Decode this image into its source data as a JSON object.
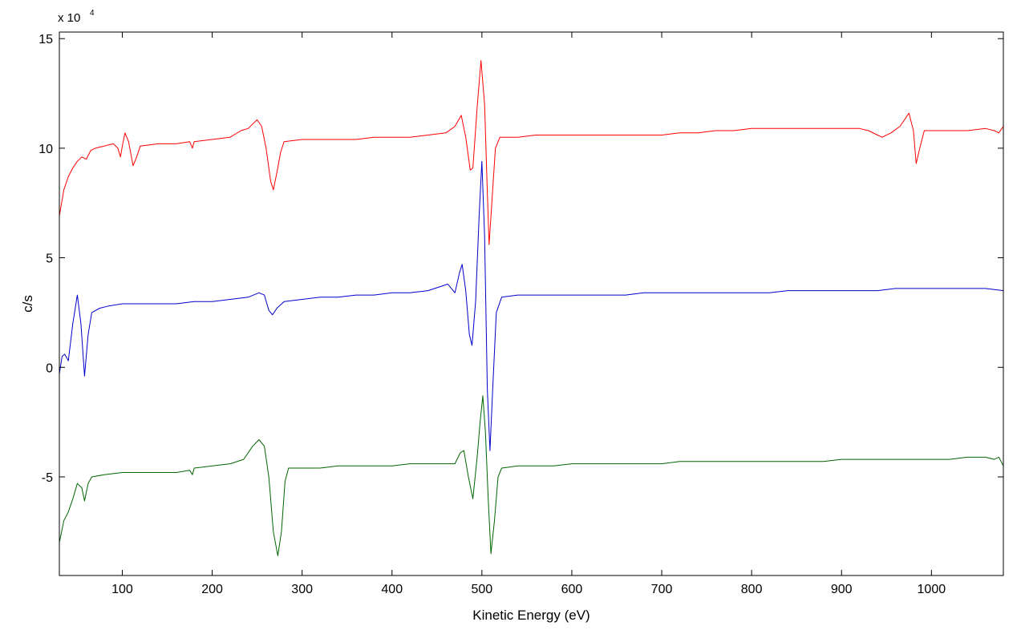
{
  "chart_data": {
    "type": "line",
    "title": "",
    "xlabel": "Kinetic Energy (eV)",
    "ylabel": "c/s",
    "y_multiplier": {
      "base": "x 10",
      "exponent": "4"
    },
    "xlim": [
      30,
      1080
    ],
    "ylim": [
      -9.5,
      15.3
    ],
    "xticks": [
      100,
      200,
      300,
      400,
      500,
      600,
      700,
      800,
      900,
      1000
    ],
    "yticks": [
      -5,
      0,
      5,
      10,
      15
    ],
    "grid": false,
    "legend": "none",
    "series": [
      {
        "color": "#ff0000",
        "points": [
          [
            30,
            6.9
          ],
          [
            35,
            8.1
          ],
          [
            40,
            8.7
          ],
          [
            45,
            9.1
          ],
          [
            50,
            9.4
          ],
          [
            55,
            9.6
          ],
          [
            60,
            9.5
          ],
          [
            65,
            9.9
          ],
          [
            70,
            10.0
          ],
          [
            80,
            10.1
          ],
          [
            90,
            10.2
          ],
          [
            95,
            10.0
          ],
          [
            98,
            9.6
          ],
          [
            100,
            10.1
          ],
          [
            103,
            10.7
          ],
          [
            107,
            10.3
          ],
          [
            112,
            9.2
          ],
          [
            116,
            9.6
          ],
          [
            120,
            10.1
          ],
          [
            140,
            10.2
          ],
          [
            160,
            10.2
          ],
          [
            175,
            10.3
          ],
          [
            178,
            10.0
          ],
          [
            180,
            10.3
          ],
          [
            200,
            10.4
          ],
          [
            220,
            10.5
          ],
          [
            232,
            10.8
          ],
          [
            240,
            10.9
          ],
          [
            250,
            11.3
          ],
          [
            255,
            11.0
          ],
          [
            260,
            10.0
          ],
          [
            265,
            8.5
          ],
          [
            268,
            8.1
          ],
          [
            272,
            8.9
          ],
          [
            276,
            9.8
          ],
          [
            280,
            10.3
          ],
          [
            300,
            10.4
          ],
          [
            320,
            10.4
          ],
          [
            340,
            10.4
          ],
          [
            360,
            10.4
          ],
          [
            380,
            10.5
          ],
          [
            400,
            10.5
          ],
          [
            420,
            10.5
          ],
          [
            440,
            10.6
          ],
          [
            460,
            10.7
          ],
          [
            470,
            11.0
          ],
          [
            477,
            11.5
          ],
          [
            482,
            10.5
          ],
          [
            487,
            9.0
          ],
          [
            490,
            9.1
          ],
          [
            495,
            12.0
          ],
          [
            499,
            14.0
          ],
          [
            503,
            12.0
          ],
          [
            506,
            8.0
          ],
          [
            508,
            5.6
          ],
          [
            511,
            7.5
          ],
          [
            515,
            10.0
          ],
          [
            520,
            10.5
          ],
          [
            540,
            10.5
          ],
          [
            560,
            10.6
          ],
          [
            580,
            10.6
          ],
          [
            600,
            10.6
          ],
          [
            620,
            10.6
          ],
          [
            640,
            10.6
          ],
          [
            660,
            10.6
          ],
          [
            680,
            10.6
          ],
          [
            700,
            10.6
          ],
          [
            720,
            10.7
          ],
          [
            740,
            10.7
          ],
          [
            760,
            10.8
          ],
          [
            780,
            10.8
          ],
          [
            800,
            10.9
          ],
          [
            820,
            10.9
          ],
          [
            840,
            10.9
          ],
          [
            860,
            10.9
          ],
          [
            880,
            10.9
          ],
          [
            900,
            10.9
          ],
          [
            920,
            10.9
          ],
          [
            930,
            10.8
          ],
          [
            940,
            10.6
          ],
          [
            945,
            10.5
          ],
          [
            955,
            10.7
          ],
          [
            965,
            11.0
          ],
          [
            975,
            11.6
          ],
          [
            980,
            10.8
          ],
          [
            983,
            9.3
          ],
          [
            987,
            10.0
          ],
          [
            992,
            10.8
          ],
          [
            1000,
            10.8
          ],
          [
            1020,
            10.8
          ],
          [
            1040,
            10.8
          ],
          [
            1060,
            10.9
          ],
          [
            1070,
            10.8
          ],
          [
            1075,
            10.7
          ],
          [
            1080,
            11.0
          ]
        ]
      },
      {
        "color": "#0000cc",
        "points": [
          [
            30,
            -0.3
          ],
          [
            33,
            0.5
          ],
          [
            36,
            0.6
          ],
          [
            40,
            0.3
          ],
          [
            45,
            2.0
          ],
          [
            50,
            3.3
          ],
          [
            54,
            2.0
          ],
          [
            58,
            -0.4
          ],
          [
            62,
            1.5
          ],
          [
            66,
            2.5
          ],
          [
            75,
            2.7
          ],
          [
            85,
            2.8
          ],
          [
            100,
            2.9
          ],
          [
            120,
            2.9
          ],
          [
            140,
            2.9
          ],
          [
            160,
            2.9
          ],
          [
            180,
            3.0
          ],
          [
            200,
            3.0
          ],
          [
            220,
            3.1
          ],
          [
            240,
            3.2
          ],
          [
            252,
            3.4
          ],
          [
            258,
            3.3
          ],
          [
            263,
            2.6
          ],
          [
            267,
            2.4
          ],
          [
            272,
            2.7
          ],
          [
            280,
            3.0
          ],
          [
            300,
            3.1
          ],
          [
            320,
            3.2
          ],
          [
            340,
            3.2
          ],
          [
            360,
            3.3
          ],
          [
            380,
            3.3
          ],
          [
            400,
            3.4
          ],
          [
            420,
            3.4
          ],
          [
            440,
            3.5
          ],
          [
            455,
            3.7
          ],
          [
            462,
            3.8
          ],
          [
            470,
            3.4
          ],
          [
            475,
            4.3
          ],
          [
            478,
            4.7
          ],
          [
            482,
            3.5
          ],
          [
            486,
            1.5
          ],
          [
            489,
            1.0
          ],
          [
            493,
            3.0
          ],
          [
            497,
            7.0
          ],
          [
            500,
            9.4
          ],
          [
            503,
            6.0
          ],
          [
            506,
            -1.0
          ],
          [
            509,
            -3.8
          ],
          [
            512,
            -1.0
          ],
          [
            516,
            2.5
          ],
          [
            522,
            3.2
          ],
          [
            540,
            3.3
          ],
          [
            560,
            3.3
          ],
          [
            580,
            3.3
          ],
          [
            600,
            3.3
          ],
          [
            620,
            3.3
          ],
          [
            640,
            3.3
          ],
          [
            660,
            3.3
          ],
          [
            680,
            3.4
          ],
          [
            700,
            3.4
          ],
          [
            720,
            3.4
          ],
          [
            740,
            3.4
          ],
          [
            760,
            3.4
          ],
          [
            780,
            3.4
          ],
          [
            800,
            3.4
          ],
          [
            820,
            3.4
          ],
          [
            840,
            3.5
          ],
          [
            860,
            3.5
          ],
          [
            880,
            3.5
          ],
          [
            900,
            3.5
          ],
          [
            920,
            3.5
          ],
          [
            940,
            3.5
          ],
          [
            960,
            3.6
          ],
          [
            980,
            3.6
          ],
          [
            1000,
            3.6
          ],
          [
            1020,
            3.6
          ],
          [
            1040,
            3.6
          ],
          [
            1060,
            3.6
          ],
          [
            1080,
            3.5
          ]
        ]
      },
      {
        "color": "#006600",
        "points": [
          [
            30,
            -8.0
          ],
          [
            35,
            -7.0
          ],
          [
            40,
            -6.6
          ],
          [
            45,
            -6.0
          ],
          [
            50,
            -5.3
          ],
          [
            55,
            -5.5
          ],
          [
            58,
            -6.1
          ],
          [
            62,
            -5.3
          ],
          [
            66,
            -5.0
          ],
          [
            80,
            -4.9
          ],
          [
            100,
            -4.8
          ],
          [
            120,
            -4.8
          ],
          [
            140,
            -4.8
          ],
          [
            160,
            -4.8
          ],
          [
            175,
            -4.7
          ],
          [
            178,
            -4.9
          ],
          [
            180,
            -4.6
          ],
          [
            200,
            -4.5
          ],
          [
            220,
            -4.4
          ],
          [
            235,
            -4.2
          ],
          [
            245,
            -3.6
          ],
          [
            252,
            -3.3
          ],
          [
            258,
            -3.6
          ],
          [
            263,
            -5.0
          ],
          [
            268,
            -7.5
          ],
          [
            273,
            -8.6
          ],
          [
            277,
            -7.5
          ],
          [
            281,
            -5.2
          ],
          [
            285,
            -4.6
          ],
          [
            300,
            -4.6
          ],
          [
            320,
            -4.6
          ],
          [
            340,
            -4.5
          ],
          [
            360,
            -4.5
          ],
          [
            380,
            -4.5
          ],
          [
            400,
            -4.5
          ],
          [
            420,
            -4.4
          ],
          [
            440,
            -4.4
          ],
          [
            460,
            -4.4
          ],
          [
            470,
            -4.4
          ],
          [
            476,
            -3.9
          ],
          [
            480,
            -3.8
          ],
          [
            485,
            -5.0
          ],
          [
            490,
            -6.0
          ],
          [
            495,
            -4.0
          ],
          [
            498,
            -2.5
          ],
          [
            501,
            -1.3
          ],
          [
            504,
            -3.0
          ],
          [
            507,
            -6.0
          ],
          [
            510,
            -8.5
          ],
          [
            514,
            -7.0
          ],
          [
            518,
            -5.0
          ],
          [
            522,
            -4.6
          ],
          [
            540,
            -4.5
          ],
          [
            560,
            -4.5
          ],
          [
            580,
            -4.5
          ],
          [
            600,
            -4.4
          ],
          [
            620,
            -4.4
          ],
          [
            640,
            -4.4
          ],
          [
            660,
            -4.4
          ],
          [
            680,
            -4.4
          ],
          [
            700,
            -4.4
          ],
          [
            720,
            -4.3
          ],
          [
            740,
            -4.3
          ],
          [
            760,
            -4.3
          ],
          [
            780,
            -4.3
          ],
          [
            800,
            -4.3
          ],
          [
            820,
            -4.3
          ],
          [
            840,
            -4.3
          ],
          [
            860,
            -4.3
          ],
          [
            880,
            -4.3
          ],
          [
            900,
            -4.2
          ],
          [
            920,
            -4.2
          ],
          [
            940,
            -4.2
          ],
          [
            960,
            -4.2
          ],
          [
            980,
            -4.2
          ],
          [
            1000,
            -4.2
          ],
          [
            1020,
            -4.2
          ],
          [
            1040,
            -4.1
          ],
          [
            1060,
            -4.1
          ],
          [
            1070,
            -4.2
          ],
          [
            1075,
            -4.1
          ],
          [
            1080,
            -4.5
          ]
        ]
      }
    ]
  }
}
